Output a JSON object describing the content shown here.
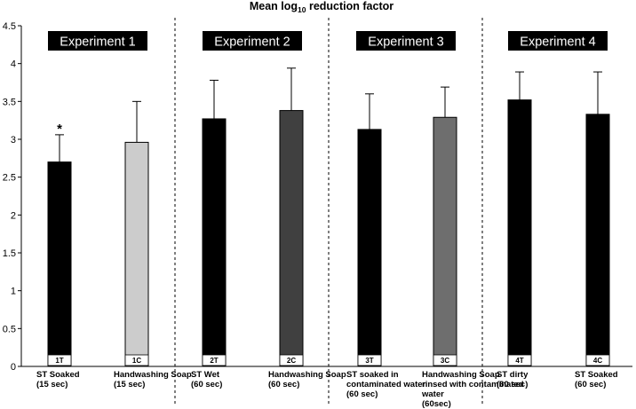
{
  "chart_data": {
    "type": "bar",
    "title_main": "Mean log",
    "title_sub": "10",
    "title_rest": " reduction factor",
    "ylim": [
      0,
      4.5
    ],
    "yticks": [
      "0",
      "0.5",
      "1",
      "1.5",
      "2",
      "2.5",
      "3",
      "3.5",
      "4",
      "4.5"
    ],
    "yticks_values": [
      0,
      0.5,
      1,
      1.5,
      2,
      2.5,
      3,
      3.5,
      4,
      4.5
    ],
    "experiments": [
      "Experiment 1",
      "Experiment 2",
      "Experiment 3",
      "Experiment 4"
    ],
    "bars": [
      {
        "code": "1T",
        "label_lines": [
          "ST Soaked",
          "(15 sec)"
        ],
        "value": 2.7,
        "error": 0.36,
        "color": "#000000",
        "significant": true,
        "asterisk": "*"
      },
      {
        "code": "1C",
        "label_lines": [
          "Handwashing Soap",
          "(15 sec)"
        ],
        "value": 2.96,
        "error": 0.54,
        "color": "#cccccc",
        "significant": false
      },
      {
        "code": "2T",
        "label_lines": [
          "ST Wet",
          "(60 sec)"
        ],
        "value": 3.27,
        "error": 0.51,
        "color": "#000000",
        "significant": false
      },
      {
        "code": "2C",
        "label_lines": [
          "Handwashing Soap",
          "(60 sec)"
        ],
        "value": 3.38,
        "error": 0.56,
        "color": "#404040",
        "significant": false
      },
      {
        "code": "3T",
        "label_lines": [
          "ST soaked in",
          "contaminated water",
          "(60 sec)"
        ],
        "value": 3.13,
        "error": 0.47,
        "color": "#000000",
        "significant": false
      },
      {
        "code": "3C",
        "label_lines": [
          "Handwashing Soap",
          "rinsed with contaminated",
          "water",
          "(60sec)"
        ],
        "value": 3.29,
        "error": 0.4,
        "color": "#6e6e6e",
        "significant": false
      },
      {
        "code": "4T",
        "label_lines": [
          "ST dirty",
          "(60 sec)"
        ],
        "value": 3.52,
        "error": 0.37,
        "color": "#000000",
        "significant": false
      },
      {
        "code": "4C",
        "label_lines": [
          "ST Soaked",
          "(60 sec)"
        ],
        "value": 3.33,
        "error": 0.56,
        "color": "#000000",
        "significant": false
      }
    ]
  }
}
